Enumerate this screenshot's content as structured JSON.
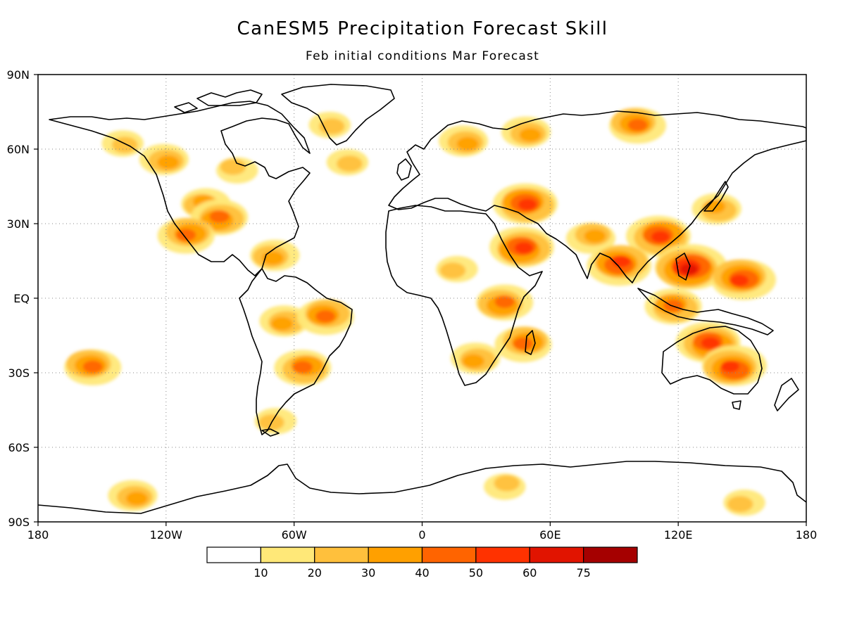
{
  "title": "CanESM5 Precipitation Forecast Skill",
  "subtitle": "Feb initial conditions  Mar Forecast",
  "map": {
    "type": "map",
    "projection": "equirectangular",
    "lon_range": [
      -180,
      180
    ],
    "lat_range": [
      -90,
      90
    ],
    "grid": "dotted",
    "lat_labels": [
      {
        "lat": 90,
        "text": "90N"
      },
      {
        "lat": 60,
        "text": "60N"
      },
      {
        "lat": 30,
        "text": "30N"
      },
      {
        "lat": 0,
        "text": "EQ"
      },
      {
        "lat": -30,
        "text": "30S"
      },
      {
        "lat": -60,
        "text": "60S"
      },
      {
        "lat": -90,
        "text": "90S"
      }
    ],
    "lon_labels": [
      {
        "lon": -180,
        "text": "180"
      },
      {
        "lon": -120,
        "text": "120W"
      },
      {
        "lon": -60,
        "text": "60W"
      },
      {
        "lon": 0,
        "text": "0"
      },
      {
        "lon": 60,
        "text": "60E"
      },
      {
        "lon": 120,
        "text": "120E"
      },
      {
        "lon": 180,
        "text": "180"
      }
    ],
    "skill_regions": [
      {
        "name": "alaska",
        "lon": -140,
        "lat": 62,
        "level": 2
      },
      {
        "name": "western-canada",
        "lon": -120,
        "lat": 55,
        "level": 3
      },
      {
        "name": "hudson-bay-south",
        "lon": -88,
        "lat": 52,
        "level": 2
      },
      {
        "name": "great-plains",
        "lon": -102,
        "lat": 38,
        "level": 3
      },
      {
        "name": "texas-gulf",
        "lon": -95,
        "lat": 32,
        "level": 4
      },
      {
        "name": "mexico-west",
        "lon": -110,
        "lat": 26,
        "level": 4
      },
      {
        "name": "greenland",
        "lon": -42,
        "lat": 70,
        "level": 2
      },
      {
        "name": "caribbean",
        "lon": -70,
        "lat": 17,
        "level": 3
      },
      {
        "name": "amazon-west",
        "lon": -65,
        "lat": -10,
        "level": 3
      },
      {
        "name": "brazil-east",
        "lon": -45,
        "lat": -7,
        "level": 4
      },
      {
        "name": "southeast-brazil",
        "lon": -55,
        "lat": -28,
        "level": 4
      },
      {
        "name": "patagonia",
        "lon": -70,
        "lat": -50,
        "level": 2
      },
      {
        "name": "pacific-south",
        "lon": -155,
        "lat": -27,
        "level": 4
      },
      {
        "name": "north-atlantic",
        "lon": -35,
        "lat": 55,
        "level": 2
      },
      {
        "name": "scandinavia",
        "lon": 20,
        "lat": 63,
        "level": 3
      },
      {
        "name": "northern-russia",
        "lon": 50,
        "lat": 66,
        "level": 3
      },
      {
        "name": "central-siberia",
        "lon": 100,
        "lat": 70,
        "level": 4
      },
      {
        "name": "caspian",
        "lon": 48,
        "lat": 38,
        "level": 5
      },
      {
        "name": "arabia",
        "lon": 47,
        "lat": 20,
        "level": 5
      },
      {
        "name": "india-north",
        "lon": 80,
        "lat": 25,
        "level": 3
      },
      {
        "name": "sahel",
        "lon": 15,
        "lat": 12,
        "level": 2
      },
      {
        "name": "east-africa",
        "lon": 38,
        "lat": -2,
        "level": 4
      },
      {
        "name": "southern-africa",
        "lon": 25,
        "lat": -25,
        "level": 3
      },
      {
        "name": "madagascar",
        "lon": 48,
        "lat": -18,
        "level": 4
      },
      {
        "name": "south-china",
        "lon": 112,
        "lat": 25,
        "level": 5
      },
      {
        "name": "philippines",
        "lon": 125,
        "lat": 12,
        "level": 6
      },
      {
        "name": "bay-of-bengal",
        "lon": 92,
        "lat": 14,
        "level": 5
      },
      {
        "name": "indonesia",
        "lon": 118,
        "lat": -3,
        "level": 4
      },
      {
        "name": "north-australia",
        "lon": 135,
        "lat": -18,
        "level": 5
      },
      {
        "name": "east-australia",
        "lon": 145,
        "lat": -28,
        "level": 5
      },
      {
        "name": "west-pacific",
        "lon": 150,
        "lat": 8,
        "level": 5
      },
      {
        "name": "japan",
        "lon": 138,
        "lat": 36,
        "level": 3
      },
      {
        "name": "antarctic-pacific",
        "lon": -135,
        "lat": -80,
        "level": 3
      },
      {
        "name": "antarctic-east",
        "lon": 40,
        "lat": -75,
        "level": 2
      },
      {
        "name": "antarctic-ross",
        "lon": 150,
        "lat": -82,
        "level": 2
      }
    ]
  },
  "colorbar": {
    "colors": [
      "#ffffff",
      "#ffe878",
      "#ffc03c",
      "#ffa000",
      "#ff6400",
      "#ff3200",
      "#e11400",
      "#a50000"
    ],
    "labels": [
      "10",
      "20",
      "30",
      "40",
      "50",
      "60",
      "75"
    ]
  }
}
